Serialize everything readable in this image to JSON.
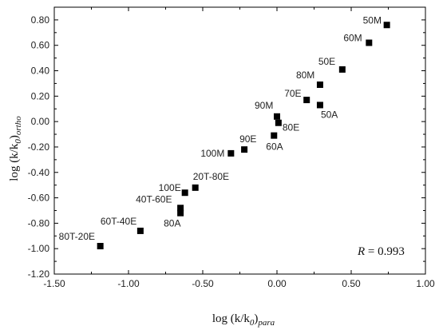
{
  "chart_data": {
    "type": "scatter",
    "xlabel": {
      "main": "log (k/k",
      "sub0": "0",
      "close": ")",
      "sub": "para"
    },
    "ylabel": {
      "main": "log (k/k",
      "sub0": "0",
      "close": ")",
      "sub": "ortho"
    },
    "xlim": [
      -1.5,
      1.0
    ],
    "ylim": [
      -1.2,
      0.9
    ],
    "xticks": [
      -1.5,
      -1.0,
      -0.5,
      0.0,
      0.5,
      1.0
    ],
    "xtick_labels": [
      "-1.50",
      "-1.00",
      "-0.50",
      "0.00",
      "0.50",
      "1.00"
    ],
    "yticks": [
      -1.2,
      -1.0,
      -0.8,
      -0.6,
      -0.4,
      -0.2,
      0.0,
      0.2,
      0.4,
      0.6,
      0.8
    ],
    "ytick_labels": [
      "-1.20",
      "-1.00",
      "-0.80",
      "-0.60",
      "-0.40",
      "-0.20",
      "0.00",
      "0.20",
      "0.40",
      "0.60",
      "0.80"
    ],
    "annotation": {
      "r_symbol": "R",
      "r_text": " = 0.993"
    },
    "marker_color": "#000000",
    "points": [
      {
        "label": "50M",
        "x": 0.74,
        "y": 0.76
      },
      {
        "label": "60M",
        "x": 0.62,
        "y": 0.62
      },
      {
        "label": "50E",
        "x": 0.44,
        "y": 0.41
      },
      {
        "label": "80M",
        "x": 0.29,
        "y": 0.29
      },
      {
        "label": "70E",
        "x": 0.2,
        "y": 0.17
      },
      {
        "label": "50A",
        "x": 0.29,
        "y": 0.13
      },
      {
        "label": "90M",
        "x": 0.0,
        "y": 0.04
      },
      {
        "label": "80E",
        "x": 0.01,
        "y": -0.01
      },
      {
        "label": "60A",
        "x": -0.02,
        "y": -0.11
      },
      {
        "label": "90E",
        "x": -0.22,
        "y": -0.22
      },
      {
        "label": "100M",
        "x": -0.31,
        "y": -0.25
      },
      {
        "label": "20T-80E",
        "x": -0.55,
        "y": -0.52
      },
      {
        "label": "100E",
        "x": -0.62,
        "y": -0.56
      },
      {
        "label": "40T-60E",
        "x": -0.65,
        "y": -0.68
      },
      {
        "label": "80A",
        "x": -0.65,
        "y": -0.72
      },
      {
        "label": "60T-40E",
        "x": -0.92,
        "y": -0.86
      },
      {
        "label": "80T-20E",
        "x": -1.19,
        "y": -0.98
      }
    ]
  }
}
